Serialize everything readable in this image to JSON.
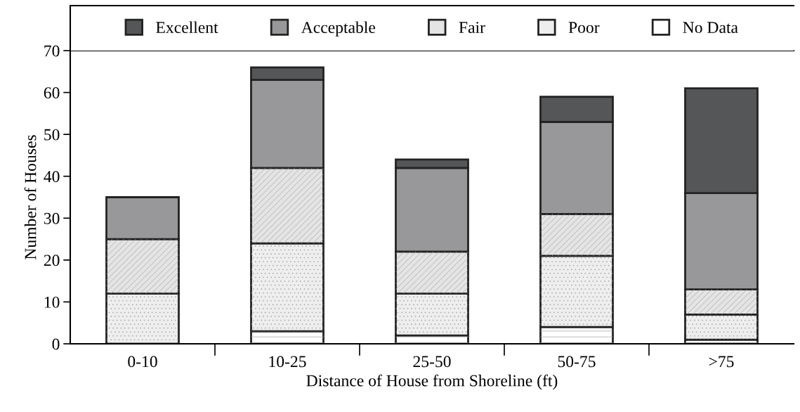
{
  "chart_data": {
    "type": "bar",
    "stacked": true,
    "xlabel": "Distance of House from Shoreline (ft)",
    "ylabel": "Number of Houses",
    "categories": [
      "0-10",
      "10-25",
      "25-50",
      "50-75",
      ">75"
    ],
    "series": [
      {
        "name": "No Data",
        "color": "#ffffff",
        "values": [
          0,
          3,
          2,
          4,
          1
        ]
      },
      {
        "name": "Poor",
        "color": "#eeeeee",
        "values": [
          12,
          21,
          10,
          17,
          6
        ]
      },
      {
        "name": "Fair",
        "color": "#e4e4e4",
        "values": [
          13,
          18,
          10,
          10,
          6
        ]
      },
      {
        "name": "Acceptable",
        "color": "#98989a",
        "values": [
          10,
          21,
          20,
          22,
          23
        ]
      },
      {
        "name": "Excellent",
        "color": "#555657",
        "values": [
          0,
          3,
          2,
          6,
          25
        ]
      }
    ],
    "ylim": [
      0,
      70
    ],
    "yticks": [
      0,
      10,
      20,
      30,
      40,
      50,
      60,
      70
    ],
    "legend": "top",
    "grid": false
  }
}
